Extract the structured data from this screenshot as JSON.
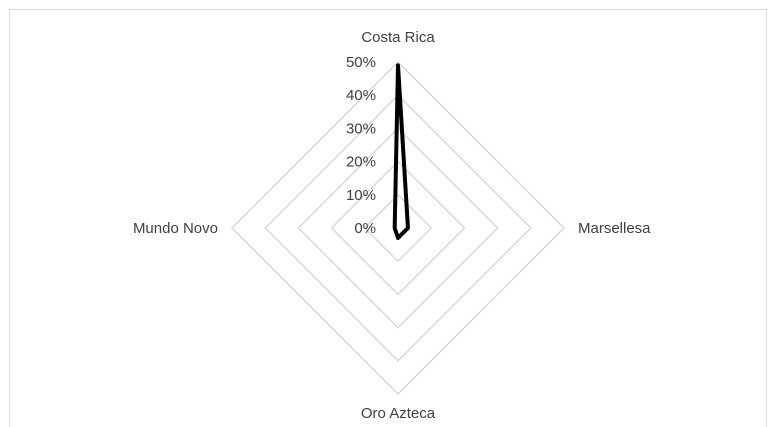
{
  "chart_data": {
    "type": "radar",
    "categories": [
      "Costa Rica",
      "Marsellesa",
      "Oro Azteca",
      "Mundo Novo"
    ],
    "series": [
      {
        "values": [
          0.49,
          0.03,
          0.03,
          0.01
        ]
      }
    ],
    "rlim": [
      0,
      0.5
    ],
    "tick_labels": [
      "0%",
      "10%",
      "20%",
      "30%",
      "40%",
      "50%"
    ],
    "grid": true,
    "legend": "none",
    "colors": {
      "series_line": "#000000",
      "gridline": "#d9d9d9",
      "label_text": "#404040",
      "border": "#d9d9d9"
    }
  }
}
